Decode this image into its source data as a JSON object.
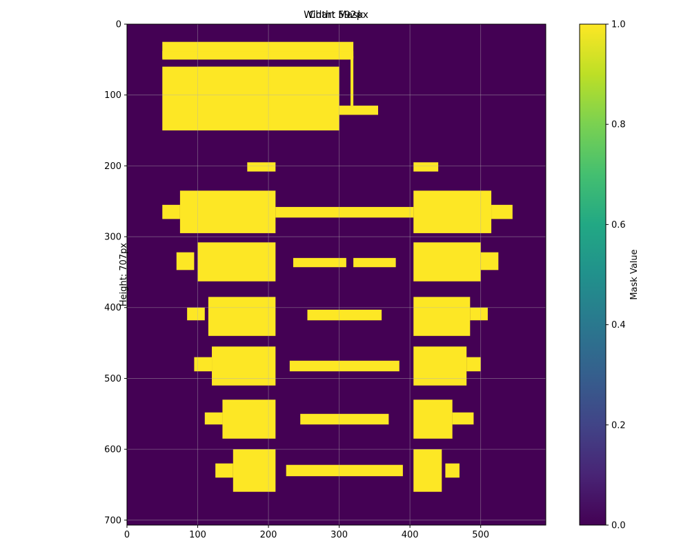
{
  "chart_data": {
    "type": "heatmap",
    "title": "Chart Mask",
    "overlay_title": "Width: 592px",
    "ylabel": "Height: 707px",
    "xlabel": "",
    "xlim": [
      0,
      592
    ],
    "ylim": [
      707,
      0
    ],
    "x_ticks": [
      0,
      100,
      200,
      300,
      400,
      500
    ],
    "y_ticks": [
      0,
      100,
      200,
      300,
      400,
      500,
      600,
      700
    ],
    "grid": true,
    "colormap": "viridis",
    "colorbar": {
      "label": "Mask Value",
      "range": [
        0,
        1
      ],
      "ticks": [
        "0.0",
        "0.2",
        "0.4",
        "0.6",
        "0.8",
        "1.0"
      ]
    },
    "background_value": 0,
    "foreground_value": 1,
    "mask_regions": [
      {
        "x": [
          50,
          300
        ],
        "y": [
          60,
          150
        ]
      },
      {
        "x": [
          50,
          320
        ],
        "y": [
          25,
          50
        ]
      },
      {
        "x": [
          50,
          320
        ],
        "y": [
          38,
          48
        ]
      },
      {
        "x": [
          300,
          355
        ],
        "y": [
          115,
          128
        ]
      },
      {
        "x": [
          316,
          320
        ],
        "y": [
          45,
          115
        ]
      },
      {
        "x": [
          100,
          200
        ],
        "y": [
          60,
          100
        ]
      },
      {
        "x": [
          170,
          210
        ],
        "y": [
          195,
          208
        ]
      },
      {
        "x": [
          405,
          440
        ],
        "y": [
          195,
          208
        ]
      },
      {
        "x": [
          75,
          210
        ],
        "y": [
          235,
          295
        ]
      },
      {
        "x": [
          50,
          75
        ],
        "y": [
          255,
          275
        ]
      },
      {
        "x": [
          210,
          405
        ],
        "y": [
          258,
          273
        ]
      },
      {
        "x": [
          405,
          515
        ],
        "y": [
          235,
          295
        ]
      },
      {
        "x": [
          515,
          545
        ],
        "y": [
          255,
          275
        ]
      },
      {
        "x": [
          100,
          210
        ],
        "y": [
          308,
          363
        ]
      },
      {
        "x": [
          70,
          95
        ],
        "y": [
          322,
          347
        ]
      },
      {
        "x": [
          235,
          310
        ],
        "y": [
          330,
          343
        ]
      },
      {
        "x": [
          320,
          380
        ],
        "y": [
          330,
          343
        ]
      },
      {
        "x": [
          405,
          500
        ],
        "y": [
          308,
          363
        ]
      },
      {
        "x": [
          500,
          525
        ],
        "y": [
          322,
          347
        ]
      },
      {
        "x": [
          115,
          210
        ],
        "y": [
          385,
          440
        ]
      },
      {
        "x": [
          85,
          110
        ],
        "y": [
          400,
          418
        ]
      },
      {
        "x": [
          255,
          360
        ],
        "y": [
          403,
          418
        ]
      },
      {
        "x": [
          405,
          485
        ],
        "y": [
          385,
          440
        ]
      },
      {
        "x": [
          485,
          510
        ],
        "y": [
          400,
          418
        ]
      },
      {
        "x": [
          120,
          210
        ],
        "y": [
          455,
          510
        ]
      },
      {
        "x": [
          95,
          120
        ],
        "y": [
          470,
          490
        ]
      },
      {
        "x": [
          230,
          385
        ],
        "y": [
          475,
          490
        ]
      },
      {
        "x": [
          405,
          480
        ],
        "y": [
          455,
          510
        ]
      },
      {
        "x": [
          480,
          500
        ],
        "y": [
          470,
          490
        ]
      },
      {
        "x": [
          135,
          210
        ],
        "y": [
          530,
          585
        ]
      },
      {
        "x": [
          110,
          135
        ],
        "y": [
          548,
          565
        ]
      },
      {
        "x": [
          245,
          370
        ],
        "y": [
          550,
          565
        ]
      },
      {
        "x": [
          405,
          460
        ],
        "y": [
          530,
          585
        ]
      },
      {
        "x": [
          460,
          490
        ],
        "y": [
          548,
          565
        ]
      },
      {
        "x": [
          150,
          210
        ],
        "y": [
          600,
          660
        ]
      },
      {
        "x": [
          125,
          150
        ],
        "y": [
          620,
          640
        ]
      },
      {
        "x": [
          225,
          390
        ],
        "y": [
          622,
          638
        ]
      },
      {
        "x": [
          405,
          445
        ],
        "y": [
          600,
          660
        ]
      },
      {
        "x": [
          450,
          470
        ],
        "y": [
          620,
          640
        ]
      }
    ]
  }
}
